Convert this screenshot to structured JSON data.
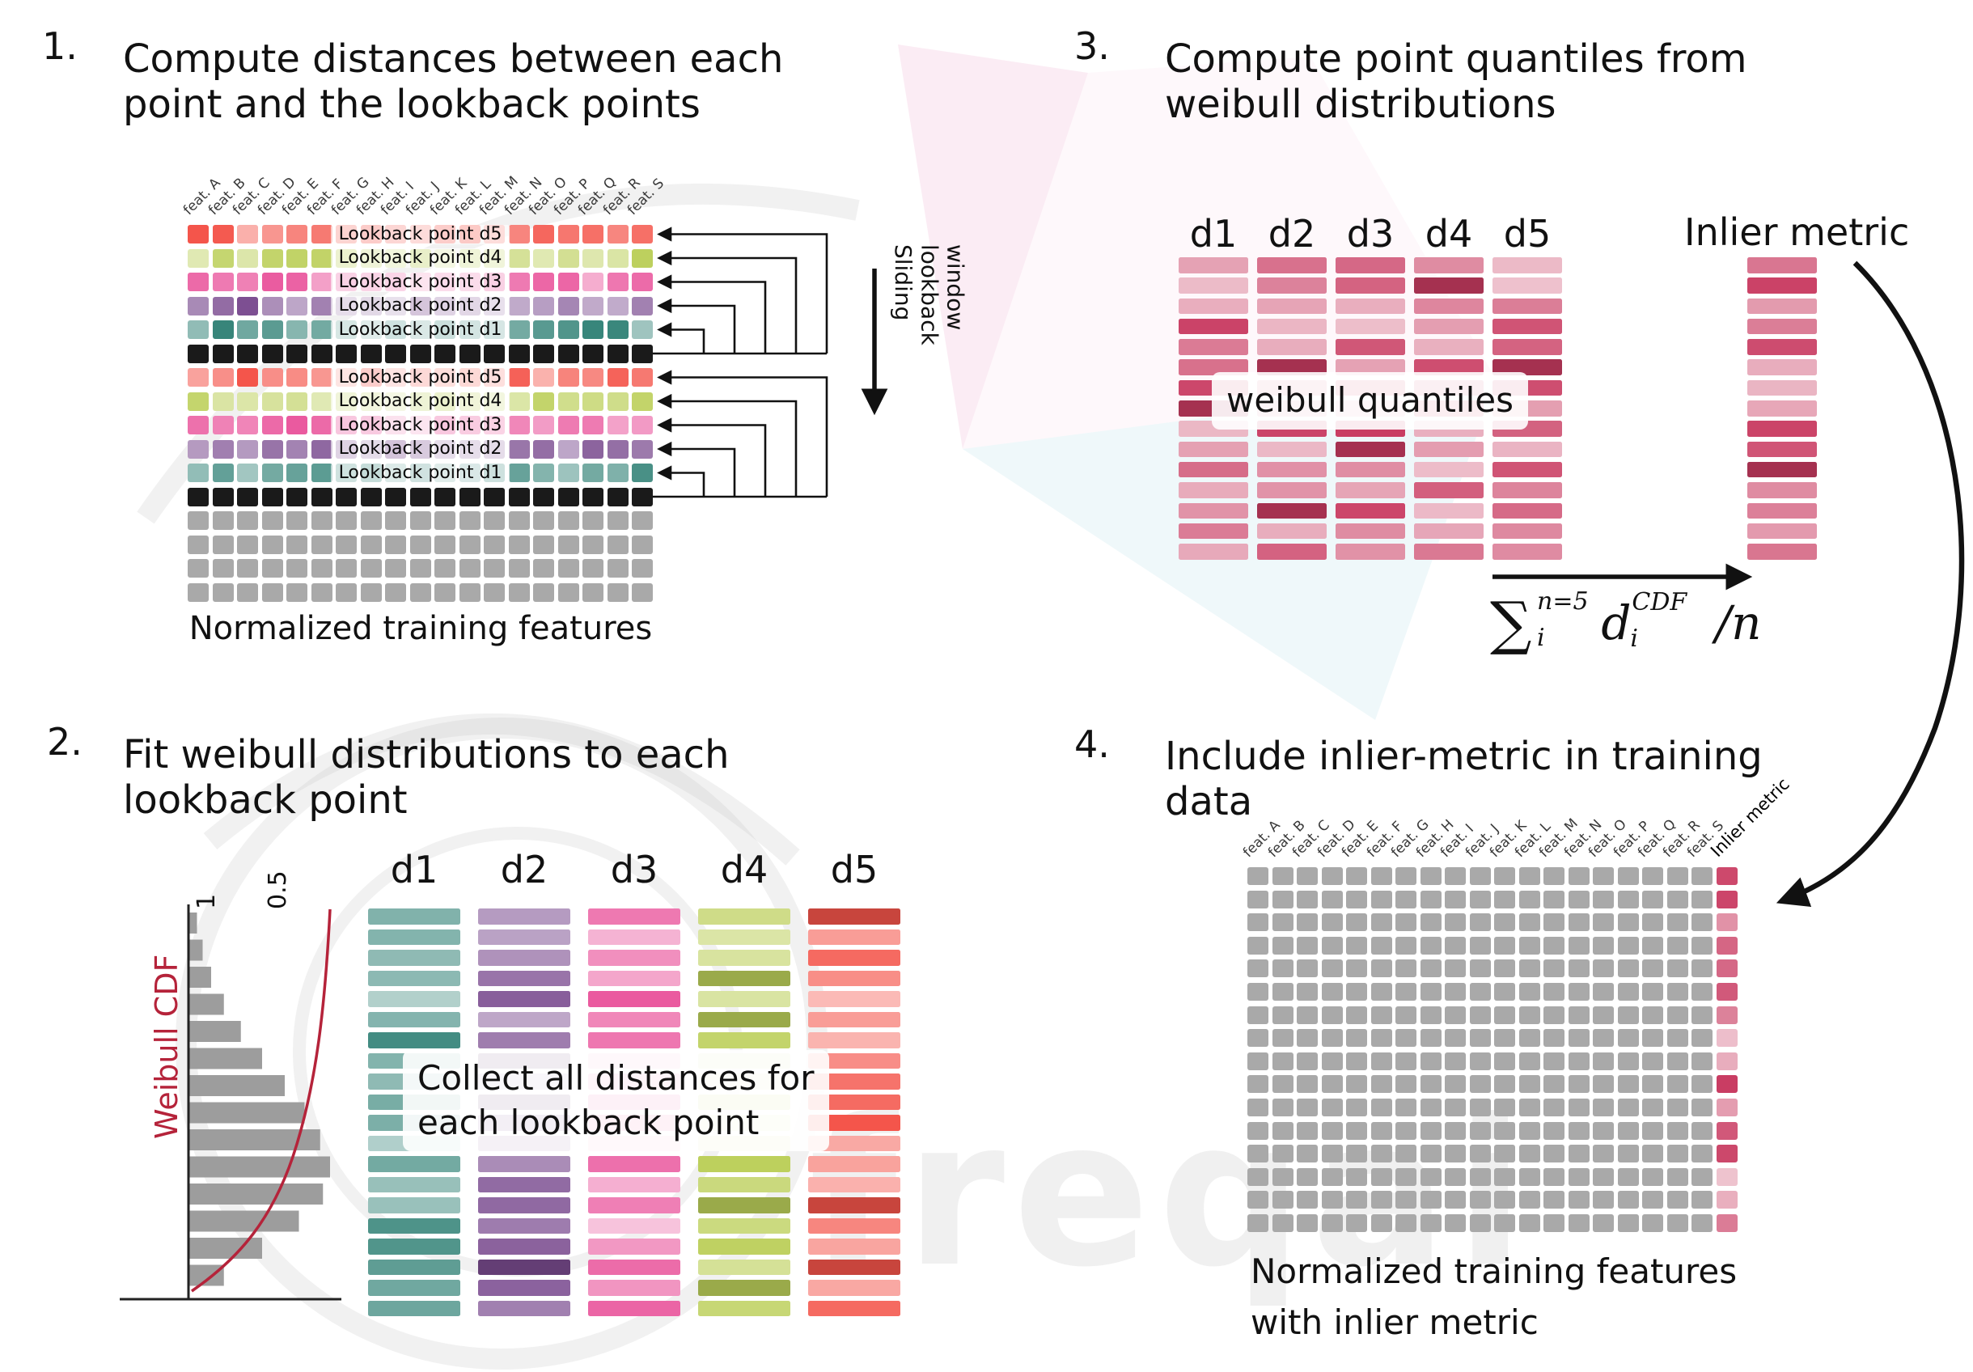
{
  "watermark": {
    "text": "freqai"
  },
  "palette": {
    "d1": "#37857a",
    "d2": "#7a4b8f",
    "d3": "#ea5a9f",
    "d4": "#bccf5a",
    "d5": "#f4544a",
    "black": "#1a1a1a",
    "gray": "#a9a9a9",
    "quantile": "#c93c62",
    "cdf_curve": "#b5233a"
  },
  "features": [
    "feat. A",
    "feat. B",
    "feat. C",
    "feat. D",
    "feat. E",
    "feat. F",
    "feat. G",
    "feat. H",
    "feat. I",
    "feat. J",
    "feat. K",
    "feat. L",
    "feat. M",
    "feat. N",
    "feat. O",
    "feat. P",
    "feat. Q",
    "feat. R",
    "feat. S"
  ],
  "step1": {
    "number": "1.",
    "title": "Compute distances between each\npoint and the lookback points",
    "rows": [
      {
        "type": "d5",
        "label": "Lookback point d5"
      },
      {
        "type": "d4",
        "label": "Lookback point d4"
      },
      {
        "type": "d3",
        "label": "Lookback point d3"
      },
      {
        "type": "d2",
        "label": "Lookback point d2"
      },
      {
        "type": "d1",
        "label": "Lookback point d1"
      },
      {
        "type": "black",
        "label": ""
      },
      {
        "type": "d5",
        "label": "Lookback point d5"
      },
      {
        "type": "d4",
        "label": "Lookback point d4"
      },
      {
        "type": "d3",
        "label": "Lookback point d3"
      },
      {
        "type": "d2",
        "label": "Lookback point d2"
      },
      {
        "type": "d1",
        "label": "Lookback point d1"
      },
      {
        "type": "black",
        "label": ""
      },
      {
        "type": "gray",
        "label": ""
      },
      {
        "type": "gray",
        "label": ""
      },
      {
        "type": "gray",
        "label": ""
      },
      {
        "type": "gray",
        "label": ""
      }
    ],
    "sliding_label": "Sliding\nlookback\nwindow",
    "caption": "Normalized training features"
  },
  "step2": {
    "number": "2.",
    "title": "Fit weibull distributions to each\nlookback point",
    "plot": {
      "cdf_label": "Weibull CDF",
      "tick_1": "1",
      "tick_05": "0.5",
      "hist": [
        0.06,
        0.1,
        0.16,
        0.25,
        0.37,
        0.52,
        0.68,
        0.82,
        0.93,
        1.0,
        0.95,
        0.78,
        0.52,
        0.25
      ]
    },
    "columns": [
      "d1",
      "d2",
      "d3",
      "d4",
      "d5"
    ],
    "bars_per_column": 20,
    "overlay": "Collect all distances for\neach lookback point"
  },
  "step3": {
    "number": "3.",
    "title": "Compute point quantiles from\nweibull distributions",
    "columns": [
      "d1",
      "d2",
      "d3",
      "d4",
      "d5"
    ],
    "bars_per_column": 15,
    "overlay": "weibull quantiles",
    "inlier_label": "Inlier metric",
    "formula": {
      "sum": "∑",
      "sum_sup": "n=5",
      "sum_sub": "i",
      "var": "d",
      "var_sub": "i",
      "var_sup": "CDF",
      "divider": "/n"
    }
  },
  "step4": {
    "number": "4.",
    "title": "Include inlier-metric in training\ndata",
    "inlier_col_label": "Inlier metric",
    "rows_count": 16,
    "caption": "Normalized training features\nwith inlier metric"
  }
}
